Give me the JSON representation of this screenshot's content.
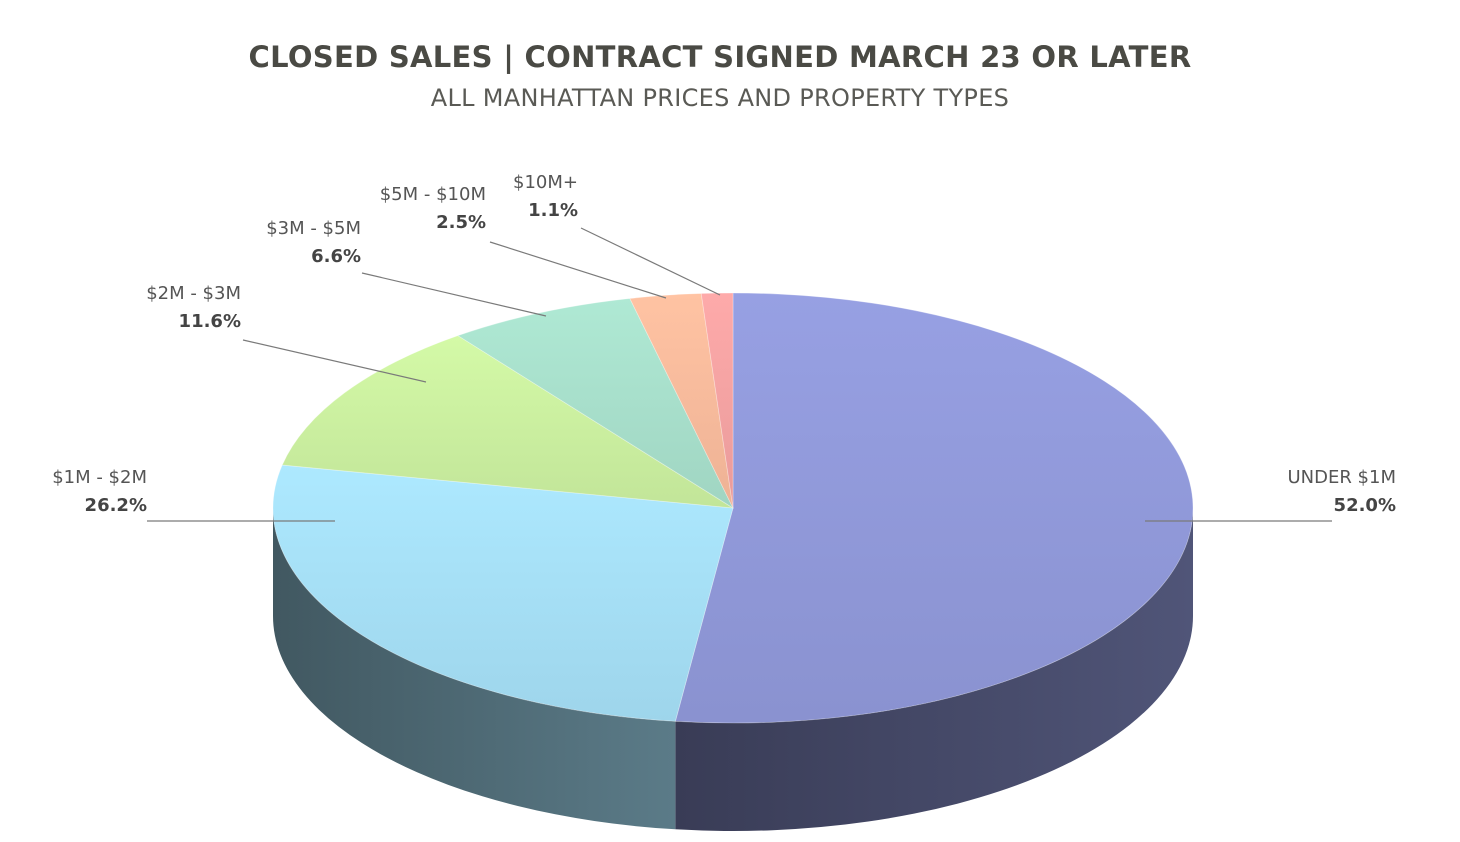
{
  "chart_title": "CLOSED SALES | CONTRACT SIGNED MARCH 23 OR LATER",
  "chart_subtitle": "ALL MANHATTAN PRICES AND PROPERTY TYPES",
  "chart_data": {
    "type": "pie",
    "title": "CLOSED SALES | CONTRACT SIGNED MARCH 23 OR LATER",
    "subtitle": "ALL MANHATTAN PRICES AND PROPERTY TYPES",
    "style": "3d",
    "categories": [
      "UNDER $1M",
      "$1M - $2M",
      "$2M - $3M",
      "$3M - $5M",
      "$5M - $10M",
      "$10M+"
    ],
    "values": [
      52.0,
      26.2,
      11.6,
      6.6,
      2.5,
      1.1
    ],
    "value_labels": [
      "52.0%",
      "26.2%",
      "11.6%",
      "6.6%",
      "2.5%",
      "1.1%"
    ],
    "colors": [
      "#8e97d6",
      "#a3dcf2",
      "#c8ec9e",
      "#a5dcc8",
      "#f5b89a",
      "#f0a0a0"
    ],
    "legend": "none"
  }
}
